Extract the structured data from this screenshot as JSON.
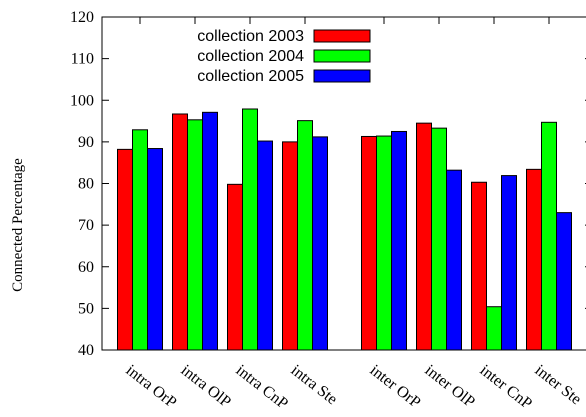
{
  "chart_data": {
    "type": "bar",
    "title": "",
    "xlabel": "",
    "ylabel": "Connected Percentage",
    "ylim": [
      40,
      120
    ],
    "yticks": [
      40,
      50,
      60,
      70,
      80,
      90,
      100,
      110,
      120
    ],
    "grid": false,
    "legend_position": "top-left",
    "categories": [
      "intra OrP",
      "intra OlP",
      "intra CnP",
      "intra Ste",
      "inter OrP",
      "inter OlP",
      "inter CnP",
      "inter Ste"
    ],
    "series": [
      {
        "name": "collection 2003",
        "color": "#ff0000",
        "values": [
          88.2,
          96.7,
          79.8,
          90.0,
          91.3,
          94.5,
          80.3,
          83.4
        ]
      },
      {
        "name": "collection 2004",
        "color": "#00ff00",
        "values": [
          92.9,
          95.3,
          97.9,
          95.1,
          91.4,
          93.3,
          50.4,
          94.7
        ]
      },
      {
        "name": "collection 2005",
        "color": "#0000ff",
        "values": [
          88.4,
          97.1,
          90.2,
          91.2,
          92.5,
          83.2,
          81.9,
          73.0
        ]
      }
    ]
  }
}
